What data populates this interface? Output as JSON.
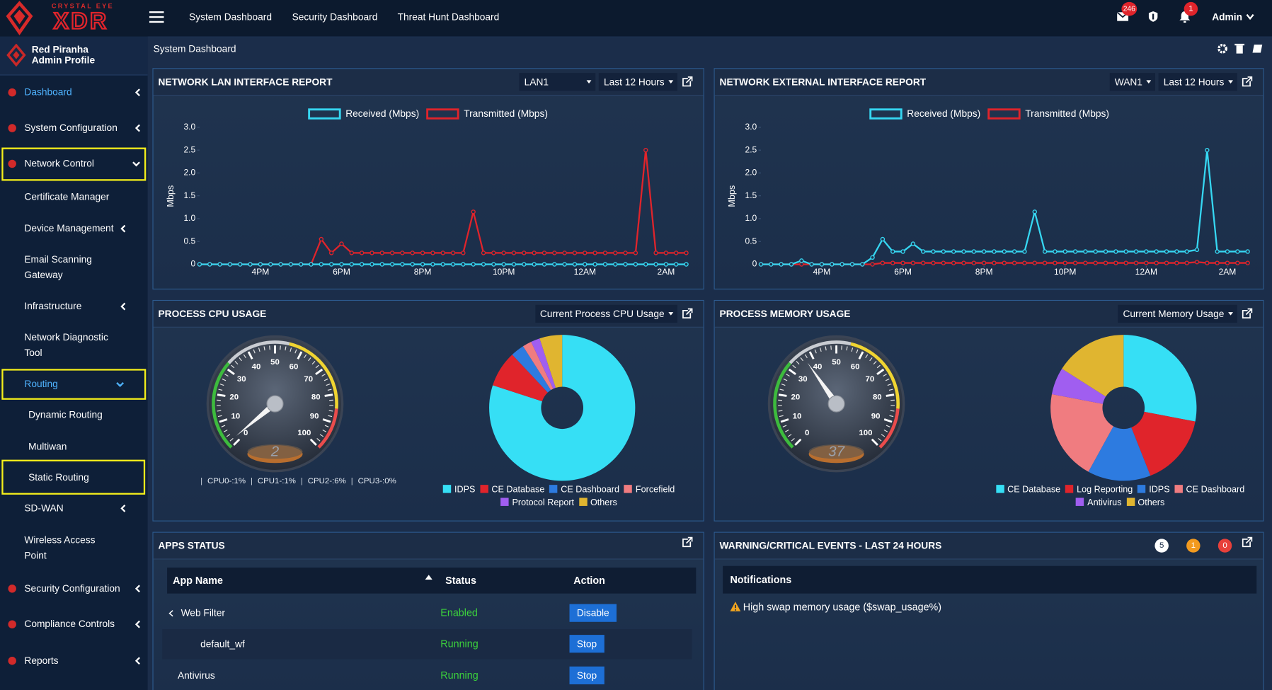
{
  "header": {
    "logo_top": "CRYSTAL EYE",
    "logo_main": "XDR",
    "nav": [
      "System Dashboard",
      "Security Dashboard",
      "Threat Hunt Dashboard"
    ],
    "mail_count": 246,
    "alert_count": 1,
    "user": "Admin"
  },
  "profile": {
    "name": "Red Piranha",
    "role": "Admin Profile"
  },
  "sidebar": [
    "Dashboard",
    "System Configuration",
    "Network Control",
    "Certificate Manager",
    "Device Management",
    "Email Scanning Gateway",
    "Infrastructure",
    "Network Diagnostic Tool",
    "Routing",
    "Dynamic Routing",
    "Multiwan",
    "Static Routing",
    "SD-WAN",
    "Wireless Access Point",
    "Security Configuration",
    "Compliance Controls",
    "Reports"
  ],
  "breadcrumb": "System Dashboard",
  "chart_data": [
    {
      "type": "line",
      "title": "NETWORK LAN INTERFACE REPORT",
      "controls": [
        "LAN1",
        "Last 12 Hours"
      ],
      "y_label": "Mbps",
      "x": [
        -1.5,
        -1.25,
        -1,
        -0.75,
        -0.5,
        -0.25,
        0,
        0.25,
        0.5,
        0.75,
        1,
        1.25,
        1.5,
        1.75,
        2,
        2.25,
        2.5,
        2.75,
        3,
        3.25,
        3.5,
        3.75,
        4,
        4.25,
        4.5,
        4.75,
        5,
        5.25,
        5.5,
        5.75,
        6,
        6.25,
        6.5,
        6.75,
        7,
        7.25,
        7.5,
        7.75,
        8,
        8.25,
        8.5,
        8.75,
        9,
        9.25,
        9.5,
        9.75,
        10,
        10.25,
        10.5
      ],
      "xlim": [
        -1.5,
        10.5
      ],
      "xticks": [
        {
          "value": 0,
          "label": "4PM"
        },
        {
          "value": 2,
          "label": "6PM"
        },
        {
          "value": 4,
          "label": "8PM"
        },
        {
          "value": 6,
          "label": "10PM"
        },
        {
          "value": 8,
          "label": "12AM"
        },
        {
          "value": 10,
          "label": "2AM"
        }
      ],
      "ylim": [
        0,
        3
      ],
      "yticks": [
        0,
        0.5,
        {
          "value": 1,
          "label": "1.0"
        },
        1.5,
        {
          "value": 2,
          "label": "2.0"
        },
        2.5,
        {
          "value": 3,
          "label": "3.0"
        }
      ],
      "series": [
        {
          "name": "Received (Mbps)",
          "color": "#36d7f2",
          "values": [
            0,
            0,
            0,
            0,
            0,
            0,
            0,
            0,
            0,
            0,
            0,
            0,
            0,
            0,
            0,
            0,
            0,
            0,
            0,
            0,
            0,
            0,
            0,
            0,
            0,
            0,
            0,
            0,
            0,
            0,
            0,
            0,
            0,
            0,
            0,
            0,
            0,
            0,
            0,
            0,
            0,
            0,
            0,
            0,
            0,
            0,
            0,
            0,
            0
          ]
        },
        {
          "name": "Transmitted (Mbps)",
          "color": "#e0242b",
          "values": [
            0,
            0,
            0,
            0,
            0,
            0,
            0,
            0,
            0,
            0,
            0,
            0,
            0.55,
            0.25,
            0.45,
            0.25,
            0.25,
            0.25,
            0.25,
            0.25,
            0.25,
            0.25,
            0.25,
            0.25,
            0.25,
            0.25,
            0.25,
            1.15,
            0.25,
            0.25,
            0.25,
            0.25,
            0.25,
            0.25,
            0.25,
            0.25,
            0.25,
            0.25,
            0.25,
            0.25,
            0.25,
            0.25,
            0.25,
            0.25,
            2.5,
            0.25,
            0.25,
            0.25,
            0.25
          ]
        }
      ]
    },
    {
      "type": "line",
      "title": "NETWORK EXTERNAL INTERFACE REPORT",
      "controls": [
        "WAN1",
        "Last 12 Hours"
      ],
      "y_label": "Mbps",
      "x": [
        -1.5,
        -1.25,
        -1,
        -0.75,
        -0.5,
        -0.25,
        0,
        0.25,
        0.5,
        0.75,
        1,
        1.25,
        1.5,
        1.75,
        2,
        2.25,
        2.5,
        2.75,
        3,
        3.25,
        3.5,
        3.75,
        4,
        4.25,
        4.5,
        4.75,
        5,
        5.25,
        5.5,
        5.75,
        6,
        6.25,
        6.5,
        6.75,
        7,
        7.25,
        7.5,
        7.75,
        8,
        8.25,
        8.5,
        8.75,
        9,
        9.25,
        9.5,
        9.75,
        10,
        10.25,
        10.5
      ],
      "xlim": [
        -1.5,
        10.5
      ],
      "xticks": [
        {
          "value": 0,
          "label": "4PM"
        },
        {
          "value": 2,
          "label": "6PM"
        },
        {
          "value": 4,
          "label": "8PM"
        },
        {
          "value": 6,
          "label": "10PM"
        },
        {
          "value": 8,
          "label": "12AM"
        },
        {
          "value": 10,
          "label": "2AM"
        }
      ],
      "ylim": [
        0,
        3
      ],
      "yticks": [
        0,
        0.5,
        {
          "value": 1,
          "label": "1.0"
        },
        1.5,
        {
          "value": 2,
          "label": "2.0"
        },
        2.5,
        {
          "value": 3,
          "label": "3.0"
        }
      ],
      "series": [
        {
          "name": "Received (Mbps)",
          "color": "#36d7f2",
          "values": [
            0,
            0,
            0,
            0,
            0.08,
            0,
            0,
            0,
            0,
            0,
            0,
            0.15,
            0.55,
            0.28,
            0.28,
            0.45,
            0.28,
            0.28,
            0.28,
            0.28,
            0.28,
            0.28,
            0.28,
            0.28,
            0.28,
            0.28,
            0.28,
            1.15,
            0.28,
            0.28,
            0.28,
            0.28,
            0.28,
            0.28,
            0.28,
            0.28,
            0.28,
            0.28,
            0.28,
            0.28,
            0.28,
            0.28,
            0.28,
            0.32,
            2.5,
            0.28,
            0.28,
            0.28,
            0.28
          ]
        },
        {
          "name": "Transmitted (Mbps)",
          "color": "#e0242b",
          "values": [
            0,
            0,
            0,
            0,
            0,
            0,
            0,
            0,
            0,
            0,
            0,
            0,
            0.03,
            0.03,
            0.03,
            0.03,
            0.03,
            0.03,
            0.03,
            0.03,
            0.03,
            0.03,
            0.03,
            0.03,
            0.03,
            0.03,
            0.03,
            0.03,
            0.03,
            0.03,
            0.03,
            0.03,
            0.03,
            0.03,
            0.03,
            0.03,
            0.03,
            0.03,
            0.03,
            0.03,
            0.03,
            0.03,
            0.03,
            0.05,
            0.03,
            0.03,
            0.03,
            0.03,
            0.03
          ]
        }
      ]
    },
    {
      "type": "gauge",
      "title": "PROCESS CPU USAGE",
      "controls": [
        "Current Process CPU Usage"
      ],
      "value": 2,
      "ylim": [
        0,
        100
      ],
      "yticks": [
        0,
        10,
        20,
        30,
        40,
        50,
        60,
        70,
        80,
        90,
        100
      ],
      "captions": [
        "CPU0-:1%",
        "CPU1-:1%",
        "CPU2-:6%",
        "CPU3-:0%"
      ]
    },
    {
      "type": "pie",
      "categories": [
        "IDPS",
        "CE Database",
        "CE Dashboard",
        "Forcefield",
        "Protocol Report",
        "Others"
      ],
      "values": [
        80,
        8,
        3,
        2,
        2,
        5
      ],
      "colors": [
        "#36dff5",
        "#e0242b",
        "#2d7be0",
        "#f07c80",
        "#a05ef0",
        "#e0b530"
      ]
    },
    {
      "type": "gauge",
      "title": "PROCESS MEMORY USAGE",
      "controls": [
        "Current Memory Usage"
      ],
      "value": 37,
      "ylim": [
        0,
        100
      ],
      "yticks": [
        0,
        10,
        20,
        30,
        40,
        50,
        60,
        70,
        80,
        90,
        100
      ]
    },
    {
      "type": "pie",
      "categories": [
        "CE Database",
        "Log Reporting",
        "IDPS",
        "CE Dashboard",
        "Antivirus",
        "Others"
      ],
      "values": [
        28,
        16,
        14,
        20,
        6,
        16
      ],
      "colors": [
        "#36dff5",
        "#e0242b",
        "#2d7be0",
        "#f07c80",
        "#a05ef0",
        "#e0b530"
      ]
    }
  ],
  "apps": {
    "title": "APPS STATUS",
    "columns": [
      "App Name",
      "Status",
      "Action"
    ],
    "rows": [
      [
        "Web Filter",
        "Enabled",
        "Disable"
      ],
      [
        "default_wf",
        "Running",
        "Stop"
      ],
      [
        "Antivirus",
        "Running",
        "Stop"
      ]
    ]
  },
  "events": {
    "title": "WARNING/CRITICAL EVENTS - LAST 24 HOURS",
    "counts": [
      5,
      1,
      0
    ],
    "heading": "Notifications",
    "items": [
      "High swap memory usage ($swap_usage%)"
    ]
  }
}
